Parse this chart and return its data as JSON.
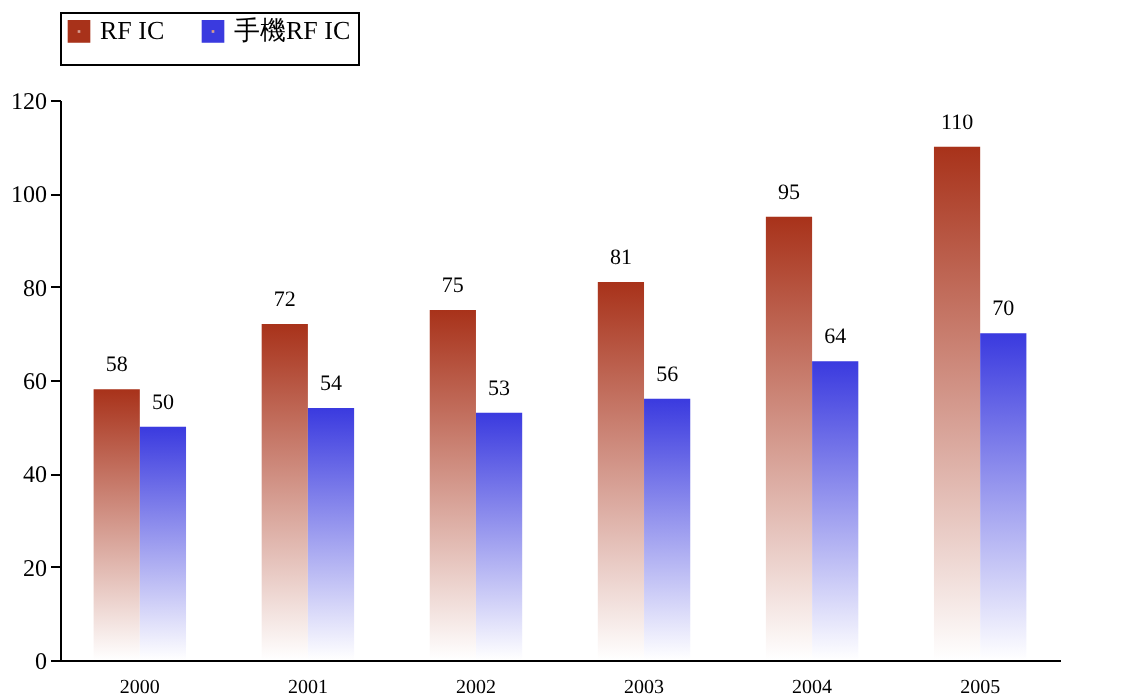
{
  "chart_data": {
    "type": "bar",
    "categories": [
      "2000",
      "2001",
      "2002",
      "2003",
      "2004",
      "2005"
    ],
    "series": [
      {
        "name": "RF IC",
        "color": "#a8321a",
        "values": [
          58,
          72,
          75,
          81,
          95,
          110
        ]
      },
      {
        "name": "手機RF IC",
        "color": "#3a3adf",
        "values": [
          50,
          54,
          53,
          56,
          64,
          70
        ]
      }
    ],
    "ylim": [
      0,
      120
    ],
    "yticks": [
      0,
      20,
      40,
      60,
      80,
      100,
      120
    ],
    "grid": false,
    "legend": "top",
    "data_labels": true
  }
}
